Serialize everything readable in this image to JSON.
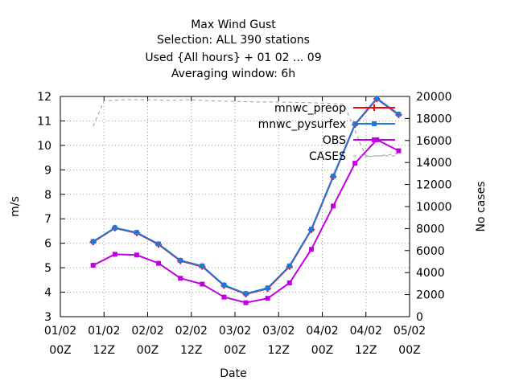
{
  "chart_data": {
    "type": "line",
    "title_lines": [
      "Max Wind Gust",
      "Selection: ALL    390 stations",
      "Used {All hours} + 01 02 ... 09",
      "Averaging window:  6h"
    ],
    "xlabel": "Date",
    "ylabel": "m/s",
    "y2label": "No cases",
    "xlim": [
      0,
      96
    ],
    "ylim": [
      3,
      12
    ],
    "y2lim": [
      0,
      20000
    ],
    "xticks": [
      {
        "x": 0,
        "line1": "01/02",
        "line2": "00Z"
      },
      {
        "x": 12,
        "line1": "01/02",
        "line2": "12Z"
      },
      {
        "x": 24,
        "line1": "02/02",
        "line2": "00Z"
      },
      {
        "x": 36,
        "line1": "02/02",
        "line2": "12Z"
      },
      {
        "x": 48,
        "line1": "03/02",
        "line2": "00Z"
      },
      {
        "x": 60,
        "line1": "03/02",
        "line2": "12Z"
      },
      {
        "x": 72,
        "line1": "04/02",
        "line2": "00Z"
      },
      {
        "x": 84,
        "line1": "04/02",
        "line2": "12Z"
      },
      {
        "x": 96,
        "line1": "05/02",
        "line2": "00Z"
      }
    ],
    "yticks": [
      "3",
      "4",
      "5",
      "6",
      "7",
      "8",
      "9",
      "10",
      "11",
      "12"
    ],
    "y2ticks": [
      "0",
      "2000",
      "4000",
      "6000",
      "8000",
      "10000",
      "12000",
      "14000",
      "16000",
      "18000",
      "20000"
    ],
    "legend_position": "top-right",
    "x": [
      9,
      15,
      21,
      27,
      33,
      39,
      45,
      51,
      57,
      63,
      69,
      75,
      81,
      87,
      93
    ],
    "series": [
      {
        "name": "mnwc_preop",
        "axis": "left",
        "color": "#ff0000",
        "marker": "cross",
        "values": [
          6.05,
          6.62,
          6.42,
          5.95,
          5.28,
          5.05,
          4.27,
          3.92,
          4.15,
          5.05,
          6.55,
          8.72,
          10.85,
          11.9,
          11.25
        ]
      },
      {
        "name": "mnwc_pysurfex",
        "axis": "left",
        "color": "#1e78dc",
        "marker": "square",
        "values": [
          6.07,
          6.63,
          6.44,
          5.97,
          5.3,
          5.07,
          4.29,
          3.94,
          4.17,
          5.07,
          6.57,
          8.74,
          10.87,
          11.92,
          11.27
        ]
      },
      {
        "name": "OBS",
        "axis": "left",
        "color": "#c000e0",
        "marker": "square",
        "values": [
          5.1,
          5.55,
          5.52,
          5.18,
          4.57,
          4.33,
          3.8,
          3.57,
          3.75,
          4.38,
          5.75,
          7.52,
          9.27,
          10.23,
          9.78
        ]
      },
      {
        "name": "CASES",
        "axis": "right",
        "color": "#999999",
        "dash": "4,4",
        "marker": "none",
        "x": [
          9,
          12,
          18,
          24,
          30,
          36,
          42,
          48,
          54,
          60,
          66,
          72,
          78,
          84,
          87,
          90,
          93
        ],
        "values": [
          17300,
          19600,
          19700,
          19700,
          19650,
          19700,
          19600,
          19550,
          19500,
          19500,
          19450,
          19400,
          19300,
          14500,
          14600,
          14700,
          14800
        ]
      }
    ]
  }
}
